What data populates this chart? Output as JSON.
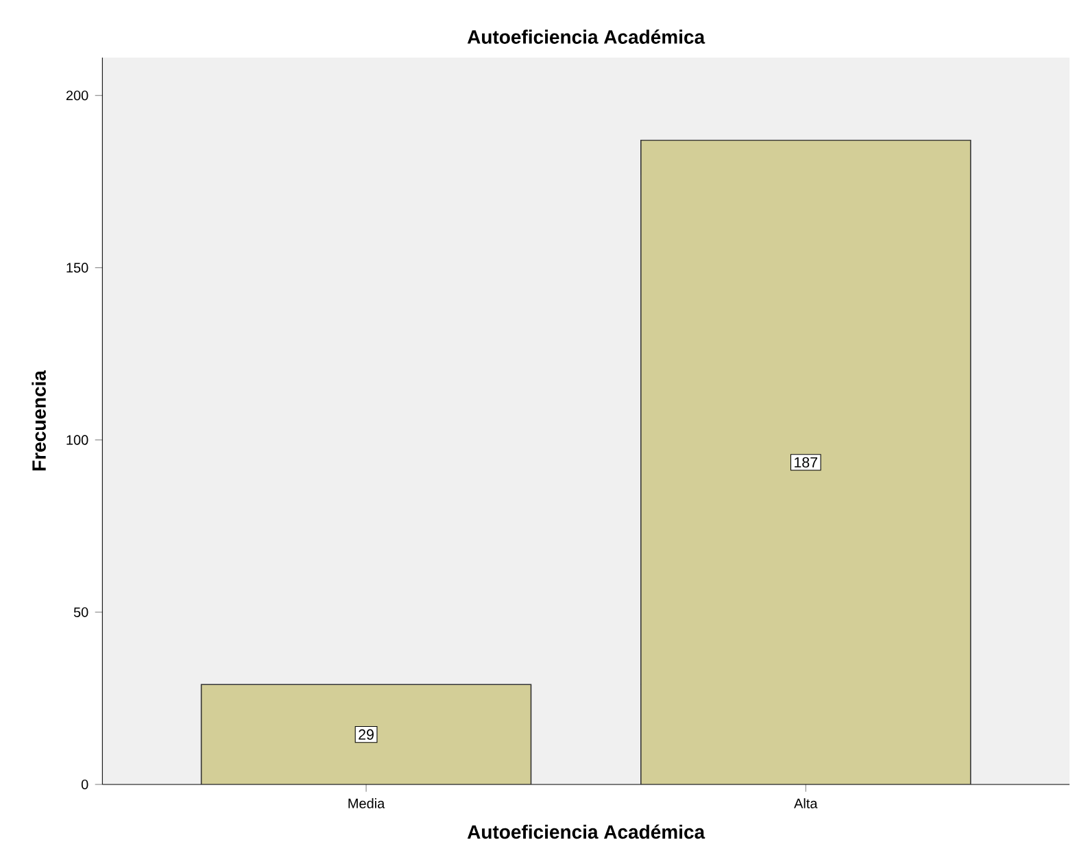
{
  "chart_data": {
    "type": "bar",
    "title": "Autoeficiencia Académica",
    "xlabel": "Autoeficiencia Académica",
    "ylabel": "Frecuencia",
    "categories": [
      "Media",
      "Alta"
    ],
    "values": [
      29,
      187
    ],
    "color": "#d3ce97",
    "ylim": [
      0,
      211
    ],
    "yticks": [
      0,
      50,
      100,
      150,
      200
    ],
    "data_labels": true,
    "grid": false
  }
}
